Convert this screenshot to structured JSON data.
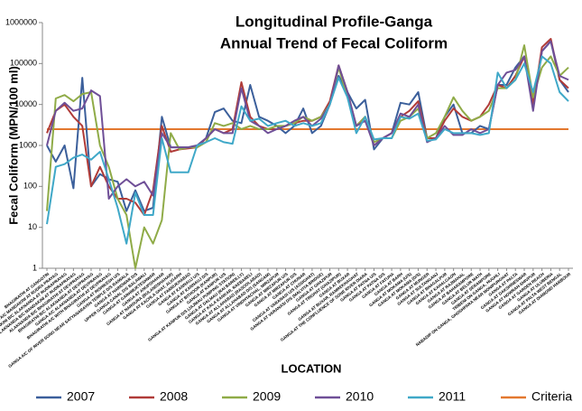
{
  "chart_data": {
    "type": "line",
    "title": "Longitudinal Profile-Ganga",
    "subtitle": "Annual Trend of Fecal Coliform",
    "y_label": "Fecal Coliform (MPN/100 ml)",
    "x_label": "LOCATION",
    "log_scale": true,
    "grid": false,
    "legend": "bottom",
    "ylim": [
      1,
      1000000
    ],
    "yticks": [
      1,
      10,
      100,
      1000,
      10000,
      100000,
      1000000
    ],
    "categories": [
      "BHAGIRATHI AT GANGOTRI",
      "ALAKNANDA A/C MANDAKINI AT RUDRA PRAYAG",
      "MANDAKINI B/C ALAKNANDA AT RUDRAPRAYAG",
      "ALAKNANDA B/C MANDAKINI AT RUDRAPRAYAG",
      "ALAKNANDA B/C BHAGIRATHI AT DEVPRAYAG",
      "BHAGIRATHI B/C ALAKNANDA AT DEVPRAYAG",
      "GANGA A/C ALAKNANDA AT DEVPRAYAG",
      "BHAGIRATHI A/C WITH BHAGIRATHI AT DEVPRAYAG",
      "GANGA AT RISHIKESH U/S",
      "GANGA A/C OF RIVER SONG NEAR SATYANARAYAN TEMPLE D/S RAIWALA",
      "GANGA AT HARIDWAR D/S",
      "UPPER GANGA CANAL D/S BALAWALI",
      "GANGA AT GARHMUKTESHWAR",
      "GANGA AT ANUPSHAHAR",
      "GANGA AT NAROURA (BULANDSHAHAR)",
      "GANGA AT KACHLA GHAT, ALIGARH",
      "GANGA AT FARRUKHABAD",
      "GANGA AT KANNAUJ U/S",
      "GANGA AT KANNAUJ D/S",
      "GANGA AT BITHOOR (KANPUR)",
      "GANGA AT KANPUR U/S",
      "GANGA AT KANPUR D/S (JAJMAU PUMPING STATION)",
      "GANGA AT DALMAU (RAI BAREILLY)",
      "GANGA AT KALA KANKAR, RAEBARELI",
      "GANGA AT ALLAHABAD (RASOOLABAD)",
      "GANGA AT ALLAHABAD D/S (SANGAM)",
      "GANGA AT VINDHYACHAL, MIRZAPUR",
      "GANGA AT MIRZAPUR U/S",
      "GANGA AT MIRZAPUR D/S",
      "GANGA AT CHUNAR",
      "GANGA AT VARANASI U/S (ASSIGHAT)",
      "GANGA AT VARANASI D/S (MALVIYA BRIDGE)",
      "GANGA AT GHAZIPUR",
      "GANGA AT TRIGHAT (GHAZIPUR)",
      "GANGA AT BUXAR",
      "GANGA AT BUXAR, RAMREKHAGHAT",
      "GANGA AT THE CONFLUENCE OF SONE RIVER DIARA",
      "GANGA AT PATNA U/S",
      "GANGA AT PATNA D/S",
      "GANGA AT FATUHA",
      "GANGA AT BARH",
      "GANGA AT MOKAMA (U/S)",
      "GANGA AT MOKAMA (D/S)",
      "GANGA AT MUNGER",
      "GANGA AT SULTANGANJ",
      "GANGA AT BHAGALPUR",
      "GANGA AT KAHALGAON",
      "GANGA AT RAJMAHAL",
      "GANGA AT BAHARAMPORE",
      "GANGA AT BELUR MATH",
      "GANGA AT SERAMPORE",
      "TRIBENI ON GANGA, HUGHLI",
      "NABADIP ON GANGA, GHOSHPARA NEAR MONIPURGHAT",
      "GANGA AT PALTA",
      "GANGA AT DAKSHINESWAR",
      "GANGA AT HOWRAH-SHIVPUR",
      "GANGA AT GARDEN REACH",
      "GANGA AT ULUBERIA",
      "GANGA AT PALTA WEST BENGAL",
      "GANGA AT DIAMOND HARBOUR"
    ],
    "series": [
      {
        "name": "2007",
        "color": "#3b5f9b",
        "values": [
          1000,
          400,
          1000,
          90,
          45000,
          100,
          200,
          150,
          130,
          25,
          80,
          25,
          30,
          5000,
          900,
          900,
          900,
          1000,
          1500,
          6500,
          8000,
          4000,
          3500,
          30000,
          5000,
          4000,
          3000,
          2000,
          3000,
          8000,
          2000,
          3000,
          10000,
          50000,
          20000,
          8000,
          13000,
          800,
          1500,
          2000,
          11000,
          10000,
          20000,
          1500,
          1500,
          5000,
          10000,
          2000,
          2000,
          3000,
          2500,
          30000,
          30000,
          80000,
          150000,
          10000,
          200000,
          350000,
          40000,
          20000
        ]
      },
      {
        "name": "2008",
        "color": "#b03b38",
        "values": [
          2000,
          7000,
          10000,
          5000,
          3000,
          100,
          300,
          100,
          50,
          50,
          40,
          20,
          80,
          3000,
          700,
          800,
          850,
          900,
          1500,
          2500,
          2000,
          2500,
          35000,
          5000,
          3000,
          2500,
          2500,
          3000,
          3500,
          4000,
          4000,
          5000,
          12000,
          90000,
          20000,
          3000,
          5000,
          1000,
          1500,
          2000,
          5000,
          7000,
          12000,
          1500,
          1500,
          4000,
          8000,
          5000,
          4000,
          5000,
          10000,
          30000,
          25000,
          50000,
          150000,
          10000,
          250000,
          400000,
          40000,
          25000
        ]
      },
      {
        "name": "2009",
        "color": "#8fab47",
        "values": [
          25,
          14000,
          17000,
          12000,
          18000,
          20000,
          1000,
          300,
          50,
          20,
          1,
          10,
          4,
          15,
          2000,
          800,
          900,
          900,
          1200,
          3500,
          3000,
          3500,
          2500,
          3000,
          2500,
          2500,
          3000,
          3000,
          3500,
          5000,
          4000,
          5000,
          10000,
          80000,
          15000,
          3000,
          5000,
          1200,
          1500,
          1500,
          4000,
          5000,
          8000,
          1500,
          2000,
          5000,
          15000,
          7000,
          4000,
          5000,
          7000,
          25000,
          25000,
          40000,
          280000,
          15000,
          80000,
          150000,
          50000,
          80000
        ]
      },
      {
        "name": "2010",
        "color": "#6f4f97",
        "values": [
          1000,
          7000,
          11000,
          7000,
          8000,
          22000,
          16000,
          50,
          100,
          150,
          100,
          130,
          60,
          2000,
          900,
          900,
          900,
          1000,
          1500,
          2500,
          2000,
          2000,
          25000,
          4000,
          3000,
          2000,
          2500,
          3000,
          4000,
          5000,
          3000,
          4500,
          10000,
          90000,
          20000,
          3000,
          4000,
          1000,
          1500,
          2000,
          6000,
          5000,
          10000,
          1200,
          1500,
          3000,
          1800,
          1800,
          2500,
          2000,
          2500,
          30000,
          60000,
          70000,
          150000,
          7000,
          200000,
          350000,
          50000,
          40000
        ]
      },
      {
        "name": "2011",
        "color": "#3fa8c8",
        "values": [
          12,
          300,
          350,
          500,
          600,
          450,
          700,
          150,
          30,
          4,
          70,
          20,
          20,
          1500,
          220,
          220,
          220,
          1000,
          1200,
          1500,
          1200,
          1100,
          9000,
          4000,
          4500,
          3000,
          3500,
          4000,
          3000,
          3500,
          3000,
          3500,
          10000,
          45000,
          15000,
          2000,
          5000,
          1400,
          1500,
          1500,
          5000,
          4500,
          6000,
          1300,
          1400,
          2500,
          2000,
          2000,
          2000,
          1800,
          2000,
          60000,
          25000,
          40000,
          100000,
          20000,
          150000,
          100000,
          20000,
          12000
        ]
      }
    ],
    "criteria": {
      "name": "Criteria",
      "color": "#e3782f",
      "value": 2500
    }
  }
}
